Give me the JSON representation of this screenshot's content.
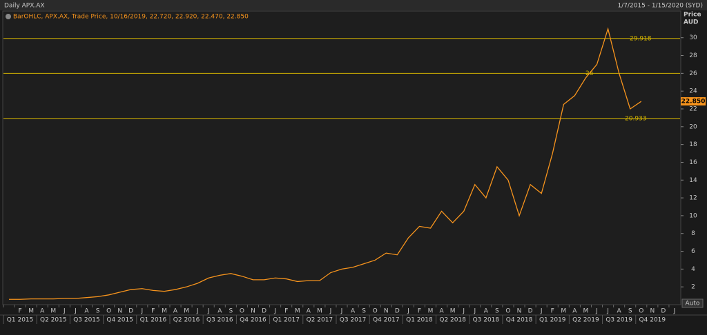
{
  "header": {
    "title": "Daily APX.AX",
    "range": "1/7/2015 - 1/15/2020 (SYD)"
  },
  "chart_data": {
    "type": "line",
    "legend": "BarOHLC, APX.AX, Trade Price, 10/16/2019, 22.720, 22.920, 22.470, 22.850",
    "y_label": [
      "Price",
      "AUD"
    ],
    "categories": [
      null,
      "F",
      "M",
      "A",
      "M",
      "J",
      "J",
      "A",
      "S",
      "O",
      "N",
      "D",
      "J",
      "F",
      "M",
      "A",
      "M",
      "J",
      "J",
      "A",
      "S",
      "O",
      "N",
      "D",
      "J",
      "F",
      "M",
      "A",
      "M",
      "J",
      "J",
      "A",
      "S",
      "O",
      "N",
      "D",
      "J",
      "F",
      "M",
      "A",
      "M",
      "J",
      "J",
      "A",
      "S",
      "O",
      "N",
      "D",
      "J",
      "F",
      "M",
      "A",
      "M",
      "J",
      "J",
      "A",
      "S",
      "O",
      "N",
      "D",
      "J"
    ],
    "quarters": [
      "Q1 2015",
      "Q2 2015",
      "Q3 2015",
      "Q4 2015",
      "Q1 2016",
      "Q2 2016",
      "Q3 2016",
      "Q4 2016",
      "Q1 2017",
      "Q2 2017",
      "Q3 2017",
      "Q4 2017",
      "Q1 2018",
      "Q2 2018",
      "Q3 2018",
      "Q4 2018",
      "Q1 2019",
      "Q2 2019",
      "Q3 2019",
      "Q4 2019"
    ],
    "series": [
      {
        "name": "APX.AX",
        "color": "#f7941d",
        "values": [
          0.6,
          0.6,
          0.65,
          0.65,
          0.65,
          0.7,
          0.7,
          0.8,
          0.9,
          1.1,
          1.4,
          1.7,
          1.8,
          1.6,
          1.5,
          1.7,
          2.0,
          2.4,
          3.0,
          3.3,
          3.5,
          3.2,
          2.8,
          2.8,
          3.0,
          2.9,
          2.6,
          2.7,
          2.7,
          3.6,
          4.0,
          4.2,
          4.6,
          5.0,
          5.8,
          5.6,
          7.5,
          8.8,
          8.6,
          10.5,
          9.2,
          10.5,
          13.5,
          12.0,
          15.5,
          14.0,
          10.0,
          13.5,
          12.5,
          17.0,
          22.5,
          23.5,
          25.5,
          27.0,
          31.0,
          26.0,
          22.0,
          22.85,
          null,
          null,
          null
        ]
      }
    ],
    "levels": [
      29.918,
      26,
      20.933
    ],
    "level_color": "#d4b400",
    "last": {
      "value": 22.85,
      "label": "22.850"
    },
    "ylim": [
      0,
      33
    ],
    "yticks": [
      2,
      4,
      6,
      8,
      10,
      12,
      14,
      16,
      18,
      20,
      22,
      24,
      26,
      28,
      30
    ],
    "button": "Auto"
  }
}
